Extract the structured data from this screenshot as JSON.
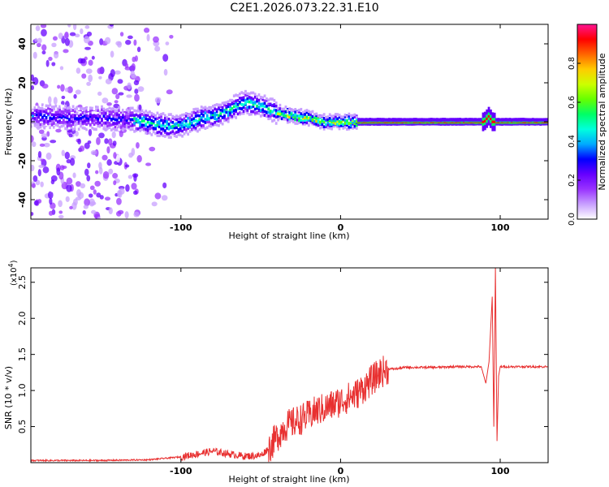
{
  "title": "C2E1.2026.073.22.31.E10",
  "chart_data": [
    {
      "type": "heatmap",
      "xlabel": "Height of straight line (km)",
      "ylabel": "Frequency (Hz)",
      "xlim": [
        -194,
        130
      ],
      "ylim": [
        -50,
        50
      ],
      "xticks": [
        -100,
        0,
        100
      ],
      "yticks": [
        -40,
        -20,
        0,
        20,
        40
      ],
      "colorbar": {
        "label": "Normalized spectral amplitude",
        "range": [
          0,
          1
        ],
        "ticks": [
          "0.0",
          "0.2",
          "0.4",
          "0.6",
          "0.8"
        ],
        "colors": [
          "#ffffff",
          "#c8a0ff",
          "#9933ff",
          "#6600ff",
          "#0000ff",
          "#00aaff",
          "#00ffdd",
          "#00ff66",
          "#66ff00",
          "#ccff00",
          "#ffcc00",
          "#ff6600",
          "#ff0000",
          "#ff1493"
        ]
      },
      "ridge": {
        "x": [
          -190,
          -170,
          -150,
          -130,
          -110,
          -100,
          -90,
          -80,
          -70,
          -60,
          -50,
          -40,
          -30,
          -20,
          -10,
          0,
          10,
          20,
          40,
          60,
          80,
          90,
          93,
          95,
          100,
          130
        ],
        "frequency": [
          3,
          2,
          2,
          1,
          -2,
          -2,
          1,
          3,
          6,
          10,
          8,
          5,
          3,
          2,
          0,
          0,
          0,
          0,
          0,
          0,
          0,
          0,
          3,
          0,
          0,
          0
        ]
      }
    },
    {
      "type": "line",
      "xlabel": "Height of straight line (km)",
      "ylabel": "SNR (10 * v/v)",
      "y_multiplier": "(x10",
      "y_multiplier_exp": "4",
      "xlim": [
        -194,
        130
      ],
      "ylim": [
        0,
        2.7
      ],
      "xticks": [
        -100,
        0,
        100
      ],
      "yticks": [
        0.5,
        1.0,
        1.5,
        2.0,
        2.5
      ],
      "series": [
        {
          "color": "#e83030",
          "x": [
            -194,
            -150,
            -120,
            -100,
            -90,
            -80,
            -70,
            -60,
            -50,
            -45,
            -40,
            -35,
            -30,
            -25,
            -20,
            -15,
            -10,
            -5,
            0,
            5,
            10,
            15,
            20,
            25,
            30,
            35,
            40,
            50,
            60,
            70,
            80,
            88,
            91,
            93,
            95,
            96,
            97,
            98,
            99,
            100,
            110,
            120,
            130
          ],
          "values": [
            0.03,
            0.03,
            0.04,
            0.08,
            0.12,
            0.16,
            0.12,
            0.09,
            0.1,
            0.2,
            0.35,
            0.5,
            0.55,
            0.6,
            0.65,
            0.72,
            0.75,
            0.8,
            0.85,
            0.9,
            0.95,
            1.05,
            1.15,
            1.25,
            1.3,
            1.3,
            1.32,
            1.32,
            1.32,
            1.33,
            1.33,
            1.33,
            1.1,
            1.4,
            2.3,
            0.5,
            2.7,
            0.3,
            1.2,
            1.33,
            1.33,
            1.33,
            1.33
          ]
        }
      ]
    }
  ]
}
